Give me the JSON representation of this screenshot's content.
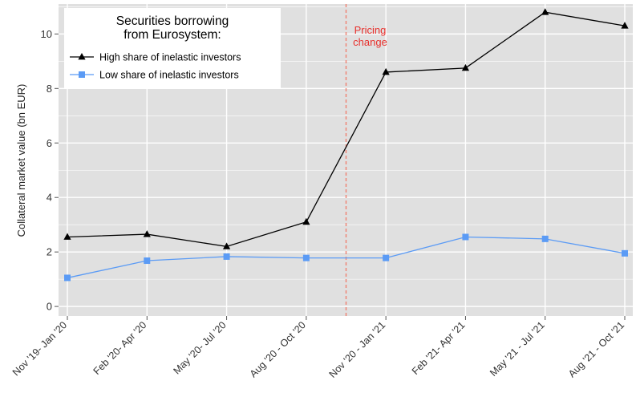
{
  "chart_data": {
    "type": "line",
    "categories": [
      "Nov '19- Jan '20",
      "Feb '20- Apr '20",
      "May '20- Jul '20",
      "Aug '20 - Oct '20",
      "Nov '20 - Jan '21",
      "Feb '21- Apr '21",
      "May '21 - Jul '21",
      "Aug '21 - Oct '21"
    ],
    "series": [
      {
        "name": "High share of inelastic investors",
        "marker": "triangle",
        "color": "#000000",
        "values": [
          2.55,
          2.65,
          2.2,
          3.1,
          8.6,
          8.75,
          10.8,
          10.3
        ]
      },
      {
        "name": "Low share of inelastic investors",
        "marker": "square",
        "color": "#5b9bf5",
        "values": [
          1.05,
          1.68,
          1.83,
          1.78,
          1.78,
          2.55,
          2.48,
          1.95
        ]
      }
    ],
    "title": "",
    "xlabel": "",
    "ylabel": "Collateral market value (bn EUR)",
    "ylim": [
      -0.35,
      11.1
    ],
    "yticks": [
      0,
      2,
      4,
      6,
      8,
      10
    ],
    "grid": true,
    "legend": {
      "title_lines": [
        "Securities borrowing",
        "from Eurosystem:"
      ],
      "placement": "top-left"
    },
    "annotation": {
      "lines": [
        "Pricing",
        "change"
      ],
      "color": "#e8302c",
      "between_categories": [
        "Aug '20 - Oct '20",
        "Nov '20 - Jan '21"
      ]
    },
    "colors": {
      "panel": "#e0e0e0",
      "grid": "#ffffff",
      "event_line": "#f08070"
    }
  }
}
